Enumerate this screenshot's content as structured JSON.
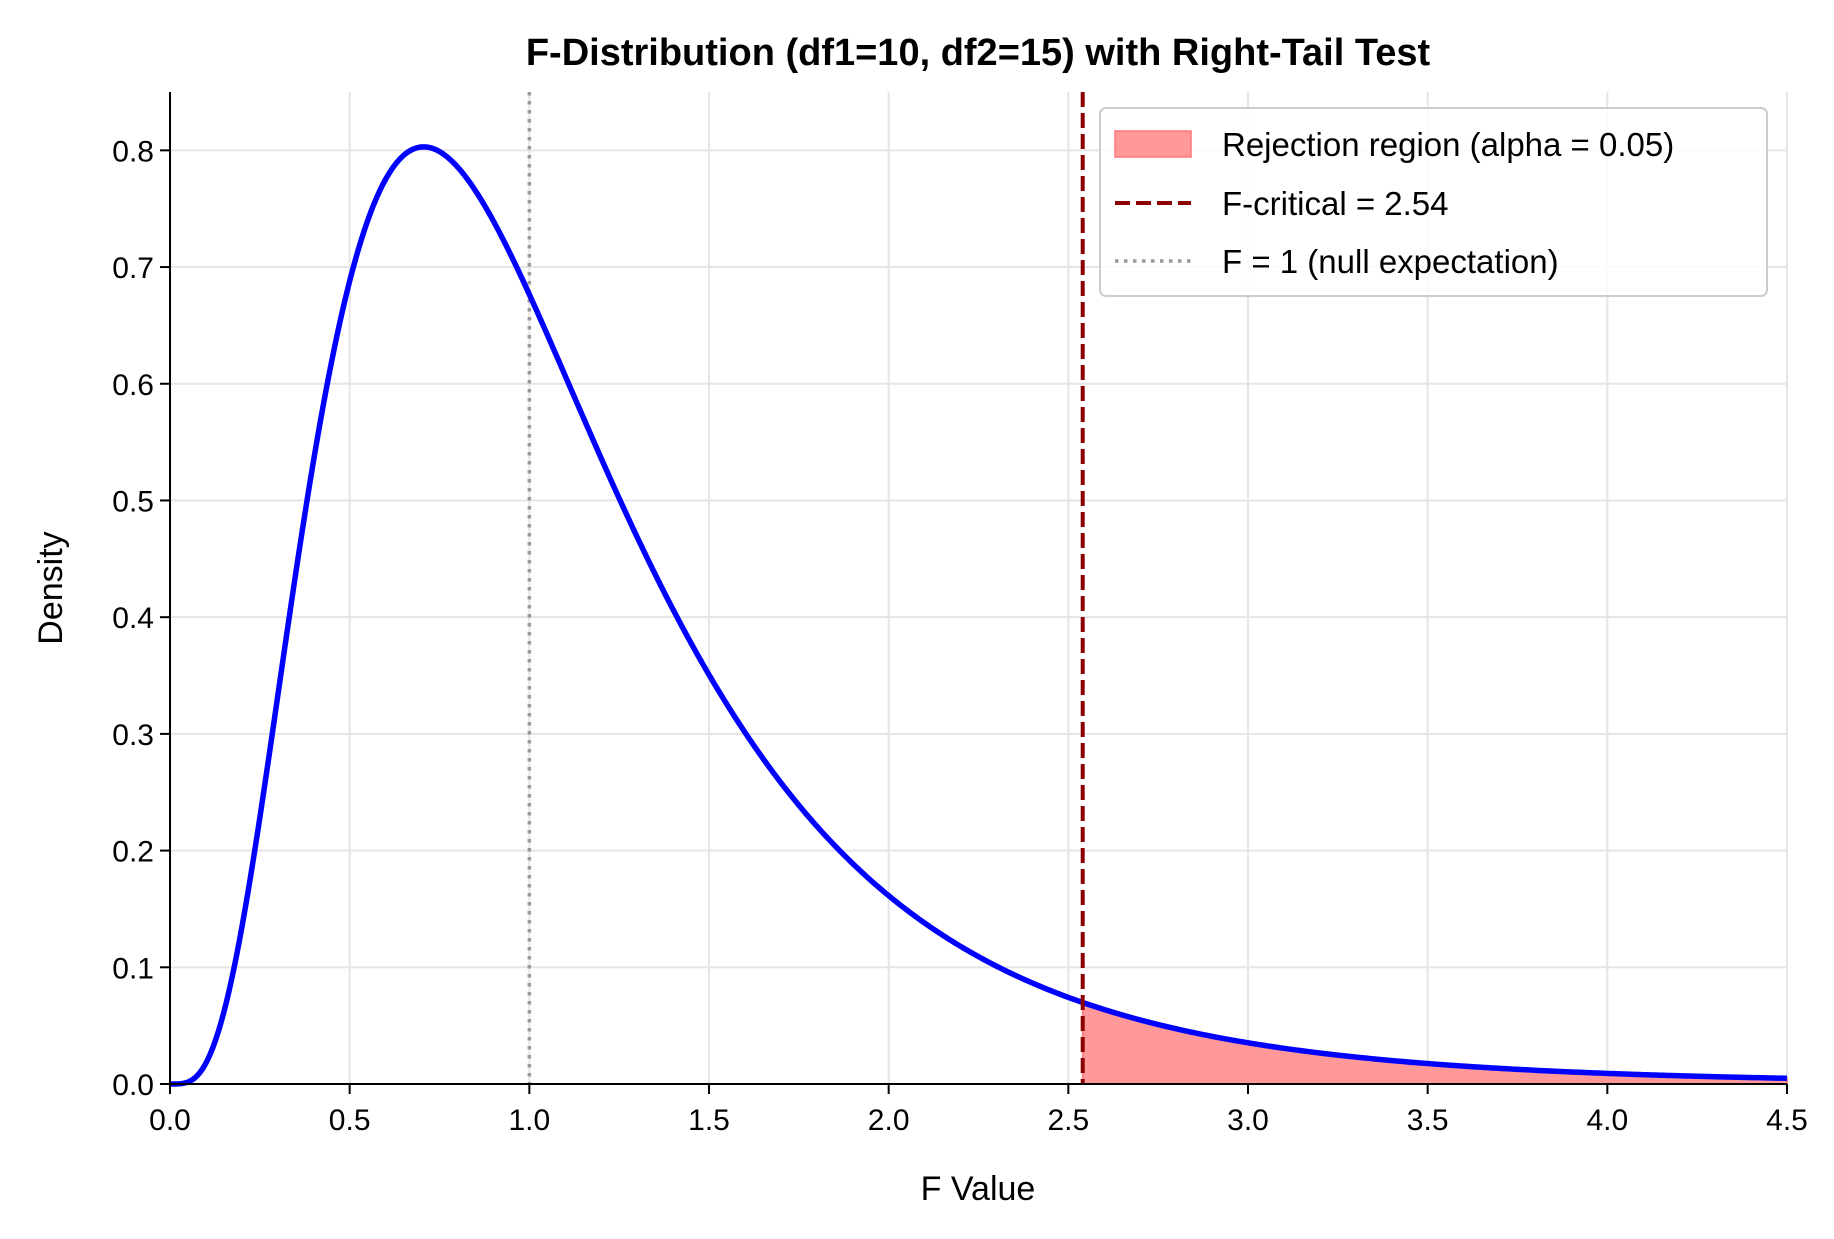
{
  "chart_data": {
    "type": "line",
    "title": "F-Distribution (df1=10, df2=15) with Right-Tail Test",
    "xlabel": "F Value",
    "ylabel": "Density",
    "xlim": [
      0,
      4.5
    ],
    "ylim": [
      0,
      0.85
    ],
    "xticks": [
      "0.0",
      "0.5",
      "1.0",
      "1.5",
      "2.0",
      "2.5",
      "3.0",
      "3.5",
      "4.0",
      "4.5"
    ],
    "yticks": [
      "0.0",
      "0.1",
      "0.2",
      "0.3",
      "0.4",
      "0.5",
      "0.6",
      "0.7",
      "0.8"
    ],
    "grid": true,
    "df1": 10,
    "df2": 15,
    "f_critical": 2.54,
    "null_expectation": 1,
    "alpha": 0.05,
    "series": [
      {
        "name": "F pdf",
        "color": "#0000ff",
        "function": "f_pdf(df1=10, df2=15)",
        "x_range": [
          0,
          4.5
        ]
      }
    ],
    "legend": {
      "placement": "top-right",
      "entries": [
        {
          "label": "Rejection region (alpha = 0.05)",
          "color": "#ff9999",
          "kind": "patch"
        },
        {
          "label": "F-critical = 2.54",
          "color": "#8b0000",
          "kind": "dashed"
        },
        {
          "label": "F = 1 (null expectation)",
          "color": "#999999",
          "kind": "dotted"
        }
      ]
    }
  }
}
